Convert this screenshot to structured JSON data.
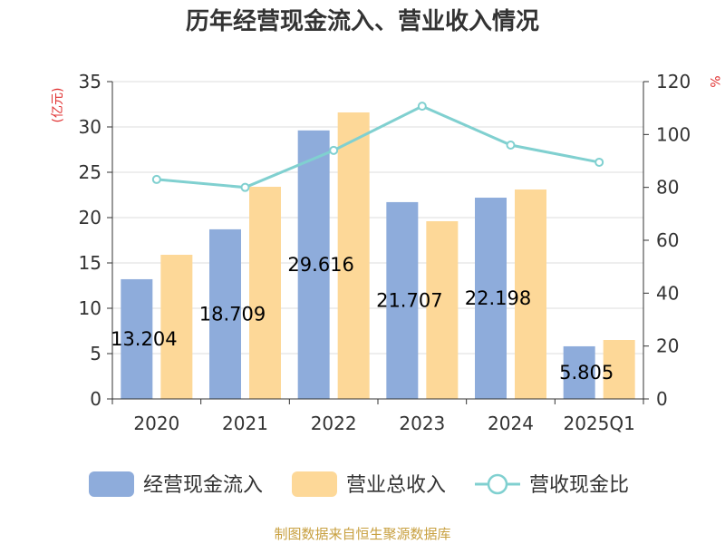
{
  "title": "历年经营现金流入、营业收入情况",
  "left_unit": "(亿元)",
  "right_unit": "%",
  "source": "制图数据来自恒生聚源数据库",
  "colors": {
    "cash_inflow": "#8eacdb",
    "revenue": "#fdd898",
    "ratio": "#80d0d0",
    "grid": "#dddddd",
    "axis": "#333333",
    "unit": "#e03030",
    "source": "#c8a040"
  },
  "chart_data": {
    "type": "bar",
    "title": "历年经营现金流入、营业收入情况",
    "categories": [
      "2020",
      "2021",
      "2022",
      "2023",
      "2024",
      "2025Q1"
    ],
    "ylim_left": [
      0,
      35
    ],
    "yticks_left": [
      0,
      5,
      10,
      15,
      20,
      25,
      30,
      35
    ],
    "ylim_right": [
      0,
      120
    ],
    "yticks_right": [
      0,
      20,
      40,
      60,
      80,
      100,
      120
    ],
    "grid": true,
    "legend_position": "bottom",
    "series": [
      {
        "name": "经营现金流入",
        "type": "bar",
        "axis": "left",
        "values": [
          13.204,
          18.709,
          29.616,
          21.707,
          22.198,
          5.805
        ],
        "labels": [
          "13.204",
          "18.709",
          "29.616",
          "21.707",
          "22.198",
          "5.805"
        ]
      },
      {
        "name": "营业总收入",
        "type": "bar",
        "axis": "left",
        "values": [
          15.9,
          23.4,
          31.6,
          19.6,
          23.1,
          6.5
        ]
      },
      {
        "name": "营收现金比",
        "type": "line",
        "axis": "right",
        "values": [
          83.0,
          80.0,
          94.0,
          110.7,
          96.0,
          89.5
        ]
      }
    ]
  }
}
